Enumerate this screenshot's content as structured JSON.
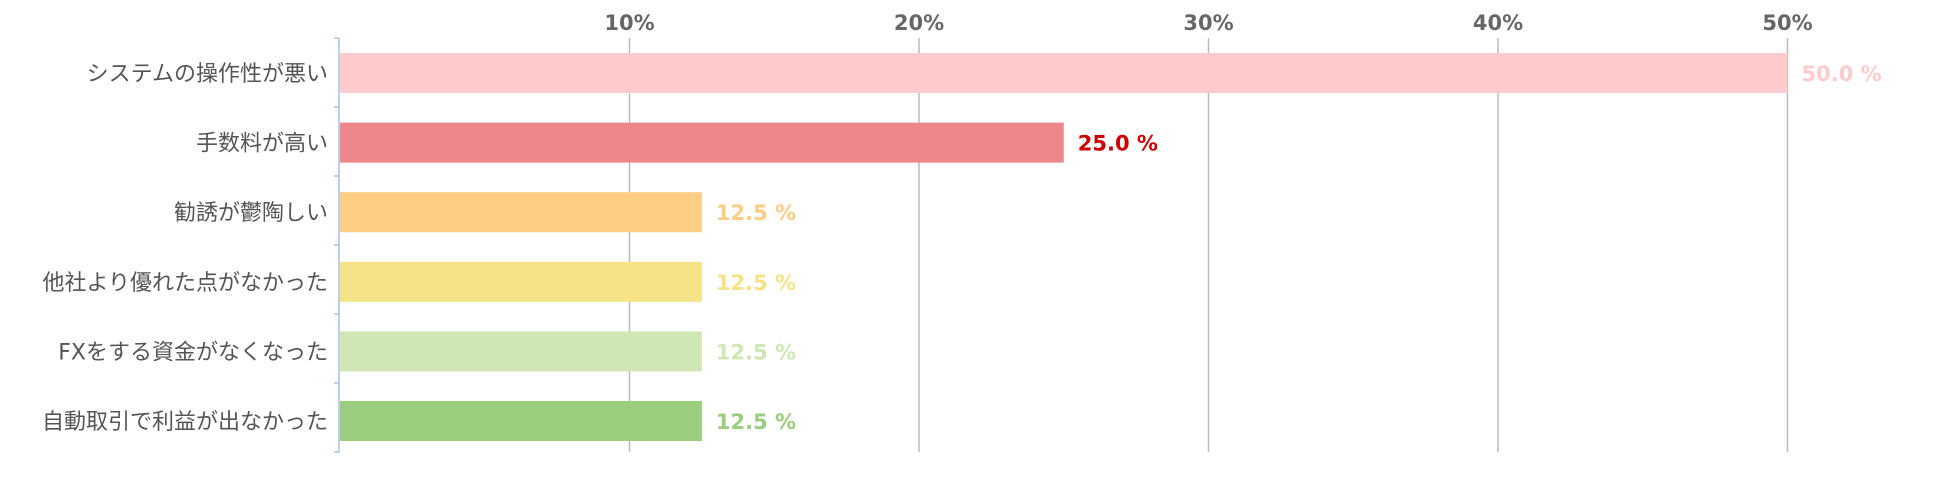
{
  "chart_data": {
    "type": "bar",
    "orientation": "horizontal",
    "title": "",
    "xlabel": "",
    "ylabel": "",
    "xlim": [
      0,
      50
    ],
    "x_ticks": [
      10,
      20,
      30,
      40,
      50
    ],
    "x_tick_labels": [
      "10%",
      "20%",
      "30%",
      "40%",
      "50%"
    ],
    "tick_axis_position": "top",
    "grid": true,
    "legend": "none",
    "categories": [
      "システムの操作性が悪い",
      "手数料が高い",
      "勧誘が鬱陶しい",
      "他社より優れた点がなかった",
      "FXをする資金がなくなった",
      "自動取引で利益が出なかった"
    ],
    "values": [
      50.0,
      25.0,
      12.5,
      12.5,
      12.5,
      12.5
    ],
    "value_labels": [
      "50.0 %",
      "25.0 %",
      "12.5 %",
      "12.5 %",
      "12.5 %",
      "12.5 %"
    ],
    "bar_colors": [
      "#fdcbcc",
      "#ee868c",
      "#fecd84",
      "#f6e387",
      "#cfe7b4",
      "#9bcd7f"
    ],
    "label_colors": [
      "#fdcbcc",
      "#cc0000",
      "#fecd84",
      "#f6e387",
      "#cfe7b4",
      "#9bcd7f"
    ],
    "gridline_color": "#bbbbbb",
    "axis_color": "#a9c0e6"
  }
}
